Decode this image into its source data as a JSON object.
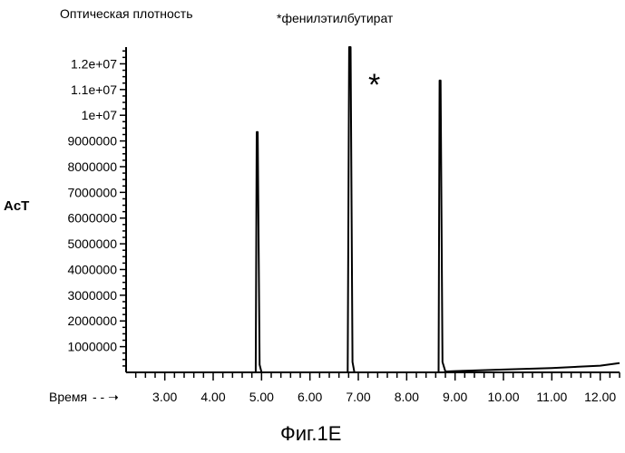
{
  "figure_caption": "Фиг.1E",
  "chart_data": {
    "type": "line",
    "title": "*фенилэтилбутират",
    "ylabel_top": "Оптическая плотность",
    "ylabel_side": "AcT",
    "xlabel": "Время",
    "xlabel_arrow": "- - ➝",
    "peak_marker": "*",
    "xlim": [
      2.2,
      12.4
    ],
    "ylim": [
      0,
      12650000
    ],
    "x_ticks": [
      3,
      4,
      5,
      6,
      7,
      8,
      9,
      10,
      11,
      12
    ],
    "x_tick_labels": [
      "3.00",
      "4.00",
      "5.00",
      "6.00",
      "7.00",
      "8.00",
      "9.00",
      "10.00",
      "11.00",
      "12.00"
    ],
    "y_ticks": [
      1000000,
      2000000,
      3000000,
      4000000,
      5000000,
      6000000,
      7000000,
      8000000,
      9000000,
      10000000,
      11000000,
      12000000
    ],
    "y_tick_labels": [
      "1000000",
      "2000000",
      "3000000",
      "4000000",
      "5000000",
      "6000000",
      "7000000",
      "8000000",
      "9000000",
      "1e+07",
      "1.1e+07",
      "1.2e+07"
    ],
    "series": [
      {
        "x": [
          2.2,
          4.88,
          4.9,
          4.92,
          4.96,
          5.0,
          6.78,
          6.81,
          6.84,
          6.88,
          6.92,
          8.66,
          8.68,
          8.7,
          8.74,
          8.8,
          9.0,
          10.0,
          11.0,
          12.0,
          12.4
        ],
        "y": [
          0,
          0,
          9350000,
          9350000,
          300000,
          0,
          0,
          12650000,
          12650000,
          400000,
          0,
          0,
          11350000,
          11350000,
          400000,
          30000,
          50000,
          110000,
          170000,
          260000,
          360000
        ]
      }
    ],
    "grid": false
  }
}
